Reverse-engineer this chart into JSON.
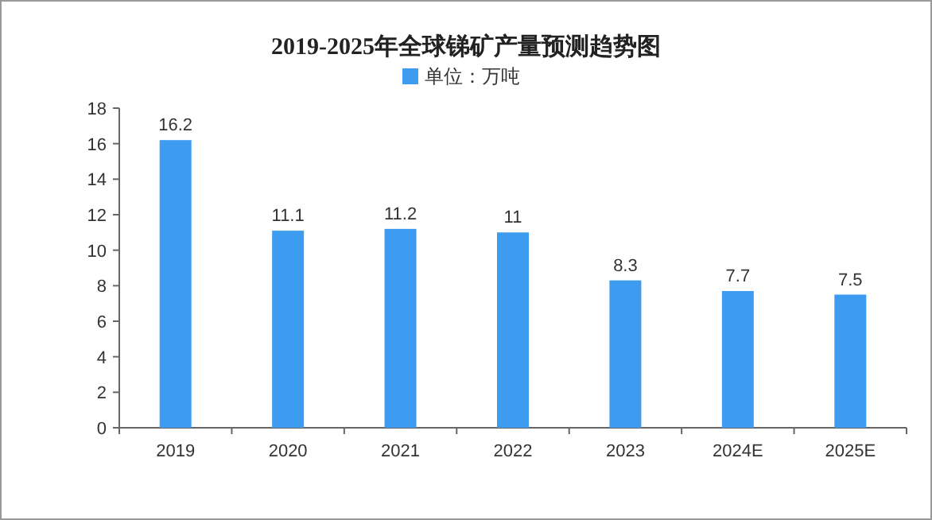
{
  "chart_data": {
    "type": "bar",
    "title": "2019-2025年全球锑矿产量预测趋势图",
    "categories": [
      "2019",
      "2020",
      "2021",
      "2022",
      "2023",
      "2024E",
      "2025E"
    ],
    "series": [
      {
        "name": "单位：万吨",
        "color": "#3d9cf0",
        "values": [
          16.2,
          11.1,
          11.2,
          11,
          8.3,
          7.7,
          7.5
        ]
      }
    ],
    "ylim": [
      0,
      18
    ],
    "yticks": [
      0,
      2,
      4,
      6,
      8,
      10,
      12,
      14,
      16,
      18
    ],
    "data_labels": true,
    "legend": "top"
  }
}
